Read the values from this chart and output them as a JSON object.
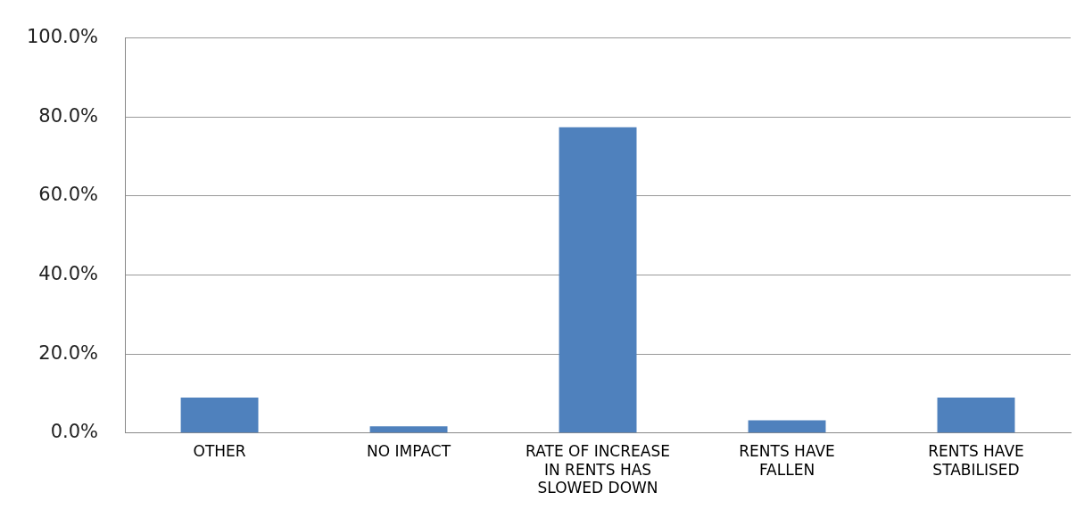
{
  "chart_data": {
    "type": "bar",
    "categories": [
      "OTHER",
      "NO IMPACT",
      "RATE OF INCREASE IN RENTS HAS SLOWED DOWN",
      "RENTS HAVE FALLEN",
      "RENTS HAVE STABILISED"
    ],
    "values": [
      9.0,
      1.7,
      77.4,
      3.2,
      9.0
    ],
    "color": "#4f81bd",
    "ylim": [
      0,
      100
    ],
    "yticks": [
      {
        "value": 0,
        "label": "0.0%"
      },
      {
        "value": 20,
        "label": "20.0%"
      },
      {
        "value": 40,
        "label": "40.0%"
      },
      {
        "value": 60,
        "label": "60.0%"
      },
      {
        "value": 80,
        "label": "80.0%"
      },
      {
        "value": 100,
        "label": "100.0%"
      }
    ],
    "grid": "y"
  }
}
